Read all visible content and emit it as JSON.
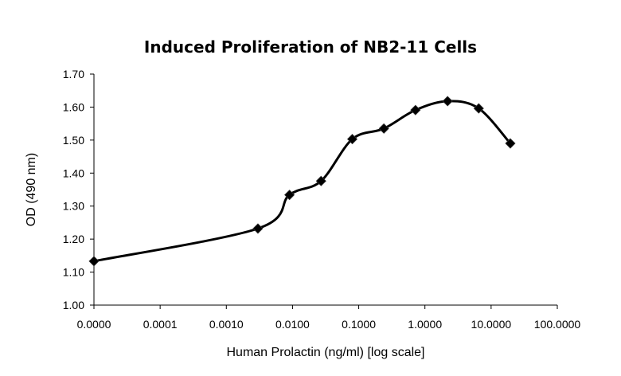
{
  "chart_data": {
    "type": "scatter",
    "title": "Induced Proliferation of NB2-11 Cells",
    "xlabel": "Human Prolactin (ng/ml) [log scale]",
    "ylabel": "OD (490 nm)",
    "x_scale": "log",
    "x_tick_labels": [
      "0.0000",
      "0.0001",
      "0.0010",
      "0.0100",
      "0.1000",
      "1.0000",
      "10.0000",
      "100.0000"
    ],
    "x_tick_values": [
      1e-05,
      0.0001,
      0.001,
      0.01,
      0.1,
      1,
      10,
      100
    ],
    "y_tick_labels": [
      "1.00",
      "1.10",
      "1.20",
      "1.30",
      "1.40",
      "1.50",
      "1.60",
      "1.70"
    ],
    "ylim": [
      1.0,
      1.7
    ],
    "xlim": [
      1e-05,
      100
    ],
    "grid": false,
    "legend": "none",
    "marker": "diamond",
    "line": "smooth",
    "series_color": "#000000",
    "x": [
      1e-05,
      0.003,
      0.009,
      0.027,
      0.08,
      0.24,
      0.72,
      2.2,
      6.5,
      19.5
    ],
    "y": [
      1.133,
      1.232,
      1.334,
      1.376,
      1.503,
      1.535,
      1.591,
      1.618,
      1.596,
      1.49
    ]
  }
}
